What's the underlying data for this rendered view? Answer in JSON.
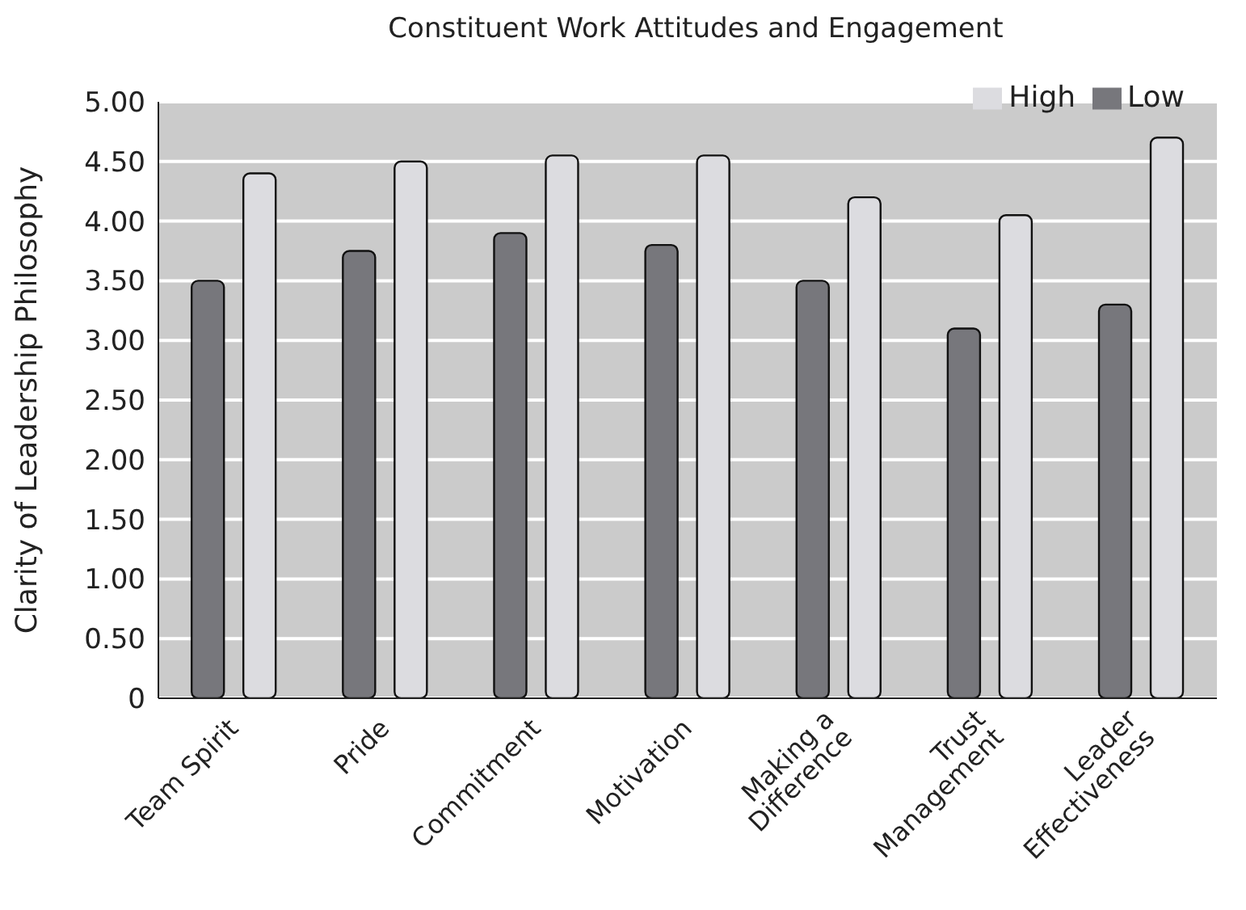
{
  "chart_data": {
    "type": "bar",
    "title": "Constituent Work Attitudes and Engagement",
    "ylabel": "Clarity of Leadership Philosophy",
    "categories": [
      "Team Spirit",
      "Pride",
      "Commitment",
      "Motivation",
      "Making a\nDifference",
      "Trust\nManagement",
      "Leader\nEffectiveness"
    ],
    "series": [
      {
        "name": "Low",
        "color": "#77777c",
        "values": [
          3.5,
          3.75,
          3.9,
          3.8,
          3.5,
          3.1,
          3.3
        ]
      },
      {
        "name": "High",
        "color": "#dcdce0",
        "values": [
          4.4,
          4.5,
          4.55,
          4.55,
          4.2,
          4.05,
          4.7
        ]
      }
    ],
    "ylim": [
      0,
      5
    ],
    "yticks": [
      {
        "value": 0,
        "label": "0"
      },
      {
        "value": 0.5,
        "label": "0.50"
      },
      {
        "value": 1,
        "label": "1.00"
      },
      {
        "value": 1.5,
        "label": "1.50"
      },
      {
        "value": 2,
        "label": "2.00"
      },
      {
        "value": 2.5,
        "label": "2.50"
      },
      {
        "value": 3,
        "label": "3.00"
      },
      {
        "value": 3.5,
        "label": "3.50"
      },
      {
        "value": 4,
        "label": "4.00"
      },
      {
        "value": 4.5,
        "label": "4.50"
      },
      {
        "value": 5,
        "label": "5.00"
      }
    ],
    "grid": "y",
    "legend": "top right"
  }
}
